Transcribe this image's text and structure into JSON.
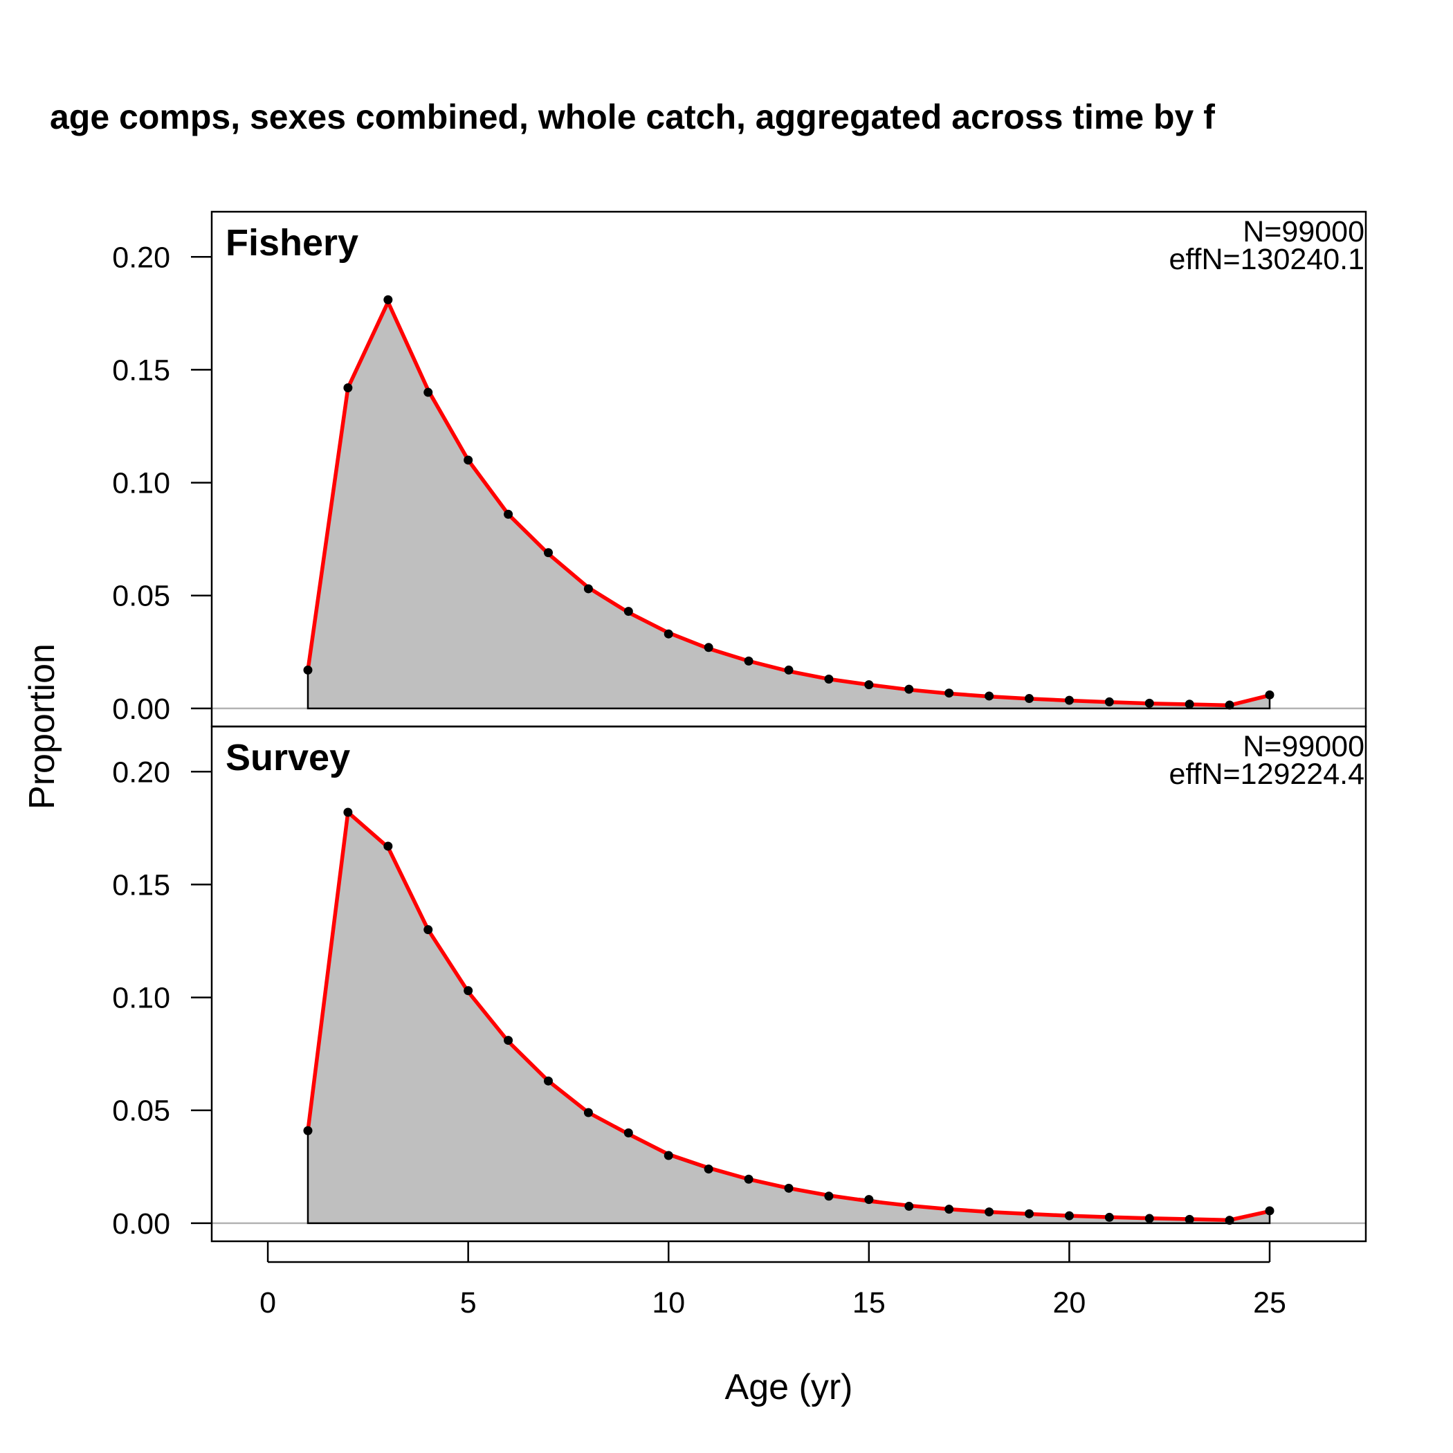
{
  "chart_data": {
    "type": "area",
    "title": "age comps, sexes combined, whole catch, aggregated across time by f",
    "xlabel": "Age (yr)",
    "ylabel": "Proportion",
    "xlim": [
      -1.4,
      27.4
    ],
    "ylim": [
      -0.008,
      0.22
    ],
    "x_ticks": [
      0,
      5,
      10,
      15,
      20,
      25
    ],
    "y_ticks": [
      0.0,
      0.05,
      0.1,
      0.15,
      0.2
    ],
    "x_tick_labels": [
      "0",
      "5",
      "10",
      "15",
      "20",
      "25"
    ],
    "y_tick_labels": [
      "0.00",
      "0.05",
      "0.10",
      "0.15",
      "0.20"
    ],
    "colors": {
      "observed_fill": "#bfbfbf",
      "expected_line": "#ff0000",
      "points": "#000000",
      "zero_line": "#b3b3b3"
    },
    "panels": [
      {
        "label": "Fishery",
        "n_text": "N=99000",
        "effn_text": "effN=130240.1",
        "x": [
          1,
          2,
          3,
          4,
          5,
          6,
          7,
          8,
          9,
          10,
          11,
          12,
          13,
          14,
          15,
          16,
          17,
          18,
          19,
          20,
          21,
          22,
          23,
          24,
          25
        ],
        "observed": [
          0.017,
          0.142,
          0.181,
          0.14,
          0.11,
          0.086,
          0.069,
          0.053,
          0.043,
          0.033,
          0.027,
          0.021,
          0.017,
          0.013,
          0.0105,
          0.0085,
          0.0068,
          0.0055,
          0.0044,
          0.0036,
          0.0029,
          0.0023,
          0.0019,
          0.0015,
          0.006
        ],
        "expected": [
          0.017,
          0.142,
          0.18,
          0.141,
          0.11,
          0.086,
          0.0685,
          0.0535,
          0.0425,
          0.0335,
          0.0265,
          0.021,
          0.0165,
          0.013,
          0.0105,
          0.0083,
          0.0066,
          0.0053,
          0.0043,
          0.0035,
          0.0028,
          0.0022,
          0.0018,
          0.0014,
          0.0058
        ]
      },
      {
        "label": "Survey",
        "n_text": "N=99000",
        "effn_text": "effN=129224.4",
        "x": [
          1,
          2,
          3,
          4,
          5,
          6,
          7,
          8,
          9,
          10,
          11,
          12,
          13,
          14,
          15,
          16,
          17,
          18,
          19,
          20,
          21,
          22,
          23,
          24,
          25
        ],
        "observed": [
          0.041,
          0.182,
          0.167,
          0.13,
          0.103,
          0.081,
          0.063,
          0.049,
          0.04,
          0.03,
          0.024,
          0.0195,
          0.0155,
          0.012,
          0.0105,
          0.0075,
          0.0062,
          0.005,
          0.0042,
          0.0033,
          0.0026,
          0.0021,
          0.0017,
          0.0013,
          0.0055
        ],
        "expected": [
          0.041,
          0.182,
          0.1665,
          0.13,
          0.1025,
          0.0805,
          0.063,
          0.049,
          0.0395,
          0.0305,
          0.0245,
          0.0195,
          0.0155,
          0.0123,
          0.0098,
          0.0078,
          0.0062,
          0.005,
          0.0041,
          0.0033,
          0.0027,
          0.0022,
          0.0018,
          0.0014,
          0.0053
        ]
      }
    ]
  }
}
